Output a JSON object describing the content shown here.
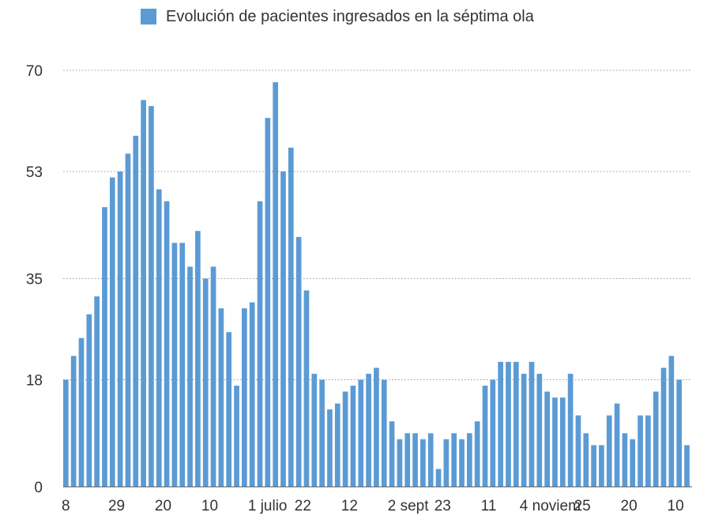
{
  "chart_data": {
    "type": "bar",
    "title": "",
    "xlabel": "",
    "ylabel": "",
    "series": [
      {
        "name": "Evolución de pacientes ingresados en la séptima ola",
        "color": "#5b9bd5",
        "values": [
          18,
          22,
          25,
          29,
          32,
          47,
          52,
          53,
          56,
          59,
          65,
          64,
          50,
          48,
          41,
          41,
          37,
          43,
          35,
          37,
          30,
          26,
          17,
          30,
          31,
          48,
          62,
          68,
          53,
          57,
          42,
          33,
          19,
          18,
          13,
          14,
          16,
          17,
          18,
          19,
          20,
          18,
          11,
          8,
          9,
          9,
          8,
          9,
          3,
          8,
          9,
          8,
          9,
          11,
          17,
          18,
          21,
          21,
          21,
          19,
          21,
          19,
          16,
          15,
          15,
          19,
          12,
          9,
          7,
          7,
          12,
          14,
          9,
          8,
          12,
          12,
          16,
          20,
          22,
          18,
          7
        ]
      }
    ],
    "y_ticks": [
      0,
      18,
      35,
      53,
      70
    ],
    "ylim": [
      0,
      70
    ],
    "grid": true,
    "x_tick_labels": [
      {
        "index": 0,
        "label": "8"
      },
      {
        "index": 6,
        "label": "29"
      },
      {
        "index": 12,
        "label": "20"
      },
      {
        "index": 18,
        "label": "10"
      },
      {
        "index": 24,
        "label": "1 julio"
      },
      {
        "index": 30,
        "label": "22"
      },
      {
        "index": 36,
        "label": "12"
      },
      {
        "index": 42,
        "label": "2 sept"
      },
      {
        "index": 48,
        "label": "23"
      },
      {
        "index": 54,
        "label": "11"
      },
      {
        "index": 59,
        "label": "4 noviem"
      },
      {
        "index": 66,
        "label": "25"
      },
      {
        "index": 72,
        "label": "20"
      },
      {
        "index": 78,
        "label": "10"
      }
    ],
    "legend": "top"
  }
}
